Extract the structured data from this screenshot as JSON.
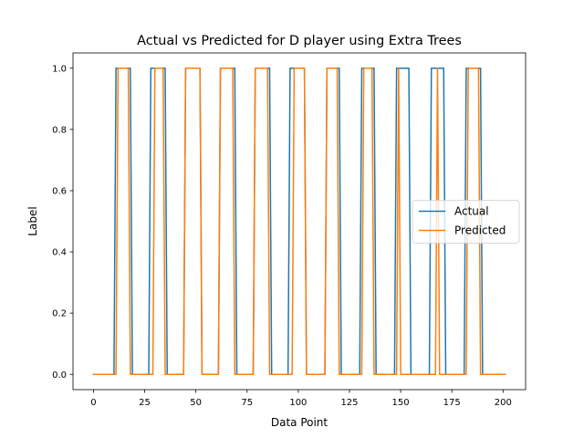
{
  "chart_data": {
    "type": "line",
    "title": "Actual vs Predicted for D player using Extra Trees",
    "xlabel": "Data Point",
    "ylabel": "Label",
    "xlim": [
      -10,
      211
    ],
    "ylim": [
      -0.05,
      1.05
    ],
    "xticks": [
      0,
      25,
      50,
      75,
      100,
      125,
      150,
      175,
      200
    ],
    "yticks": [
      0.0,
      0.2,
      0.4,
      0.6,
      0.8,
      1.0
    ],
    "xtick_labels": [
      "0",
      "25",
      "50",
      "75",
      "100",
      "125",
      "150",
      "175",
      "200"
    ],
    "ytick_labels": [
      "0.0",
      "0.2",
      "0.4",
      "0.6",
      "0.8",
      "1.0"
    ],
    "grid": false,
    "legend_position": "center-right",
    "series": [
      {
        "name": "Actual",
        "color": "#1f77b4",
        "x": [
          0,
          10,
          11,
          18,
          19,
          27,
          28,
          35,
          36,
          44,
          45,
          52,
          53,
          61,
          62,
          69,
          70,
          78,
          79,
          86,
          87,
          95,
          96,
          103,
          104,
          113,
          114,
          120,
          121,
          130,
          131,
          137,
          138,
          147,
          148,
          154,
          155,
          164,
          165,
          171,
          172,
          181,
          182,
          189,
          190,
          201
        ],
        "y": [
          0,
          0,
          1,
          1,
          0,
          0,
          1,
          1,
          0,
          0,
          1,
          1,
          0,
          0,
          1,
          1,
          0,
          0,
          1,
          1,
          0,
          0,
          1,
          1,
          0,
          0,
          1,
          1,
          0,
          0,
          1,
          1,
          0,
          0,
          1,
          1,
          0,
          0,
          1,
          1,
          0,
          0,
          1,
          1,
          0,
          0
        ]
      },
      {
        "name": "Predicted",
        "color": "#ff7f0e",
        "x": [
          0,
          11,
          12,
          17,
          18,
          29,
          30,
          34,
          35,
          44,
          45,
          52,
          53,
          61,
          62,
          68,
          69,
          78,
          79,
          85,
          86,
          97,
          98,
          103,
          104,
          113,
          114,
          119,
          120,
          131,
          132,
          136,
          137,
          148,
          149,
          150,
          151,
          167,
          168,
          169,
          182,
          183,
          188,
          189,
          201
        ],
        "y": [
          0,
          0,
          1,
          1,
          0,
          0,
          1,
          1,
          0,
          0,
          1,
          1,
          0,
          0,
          1,
          1,
          0,
          0,
          1,
          1,
          0,
          0,
          1,
          1,
          0,
          0,
          1,
          1,
          0,
          0,
          1,
          1,
          0,
          0,
          1,
          0,
          0,
          0,
          1,
          0,
          0,
          1,
          1,
          0,
          0
        ]
      }
    ]
  }
}
